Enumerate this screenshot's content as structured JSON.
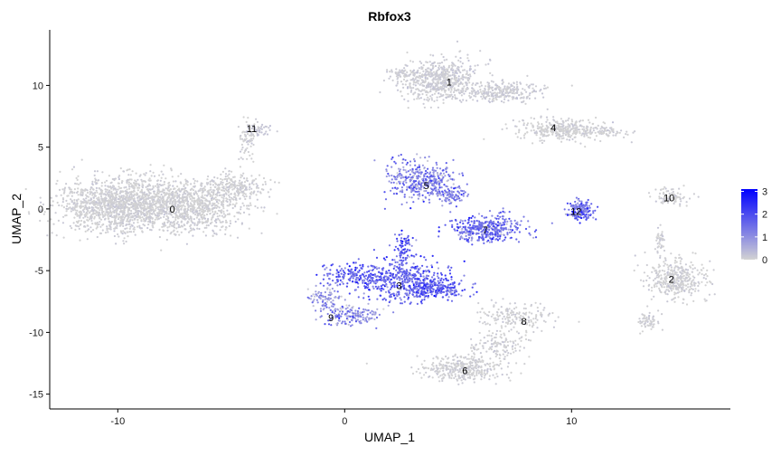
{
  "chart_data": {
    "type": "scatter",
    "title": "Rbfox3",
    "xlabel": "UMAP_1",
    "ylabel": "UMAP_2",
    "xlim": [
      -13,
      17
    ],
    "ylim": [
      -16.2,
      14.5
    ],
    "x_ticks": [
      -10,
      0,
      10
    ],
    "y_ticks": [
      10,
      5,
      0,
      -5,
      -10,
      -15
    ],
    "grid": false,
    "legend": {
      "placement": "right",
      "type": "colorbar",
      "ticks": [
        3,
        2,
        1,
        0
      ],
      "min": 0,
      "max": 3.1
    },
    "colors": {
      "low": "#d3d3d3",
      "high": "#0000ff"
    },
    "clusters": [
      {
        "label": "0",
        "x": -7.6,
        "y": 0.0,
        "expression": 0.05
      },
      {
        "label": "1",
        "x": 4.6,
        "y": 10.3,
        "expression": 0.1
      },
      {
        "label": "2",
        "x": 14.4,
        "y": -5.7,
        "expression": 0.05
      },
      {
        "label": "3",
        "x": 2.4,
        "y": -6.2,
        "expression": 1.7
      },
      {
        "label": "4",
        "x": 9.2,
        "y": 6.6,
        "expression": 0.05
      },
      {
        "label": "5",
        "x": 3.6,
        "y": 1.9,
        "expression": 1.2
      },
      {
        "label": "6",
        "x": 5.3,
        "y": -13.1,
        "expression": 0.05
      },
      {
        "label": "7",
        "x": 6.2,
        "y": -1.7,
        "expression": 1.5
      },
      {
        "label": "8",
        "x": 7.9,
        "y": -9.1,
        "expression": 0.05
      },
      {
        "label": "9",
        "x": -0.6,
        "y": -8.8,
        "expression": 1.0
      },
      {
        "label": "10",
        "x": 14.3,
        "y": 0.9,
        "expression": 0.05
      },
      {
        "label": "11",
        "x": -4.1,
        "y": 6.5,
        "expression": 0.2
      },
      {
        "label": "12",
        "x": 10.2,
        "y": -0.2,
        "expression": 1.5
      }
    ]
  }
}
